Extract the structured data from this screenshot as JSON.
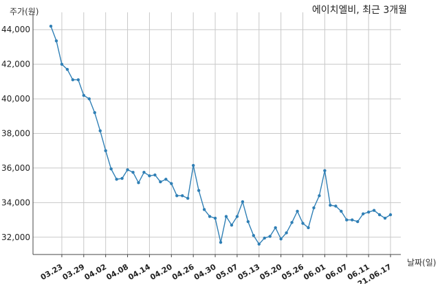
{
  "chart_data": {
    "type": "line",
    "title": "에이치엘비, 최근 3개월",
    "ylabel": "주가(원)",
    "xlabel": "날짜(일)",
    "ylim": [
      31000,
      45000
    ],
    "yticks": [
      32000,
      34000,
      36000,
      38000,
      40000,
      42000,
      44000
    ],
    "ytick_labels": [
      "32,000",
      "34,000",
      "36,000",
      "38,000",
      "40,000",
      "42,000",
      "44,000"
    ],
    "xtick_labels": [
      "03.23",
      "03.29",
      "04.02",
      "04.08",
      "04.14",
      "04.20",
      "04.26",
      "04.30",
      "05.07",
      "05.13",
      "05.20",
      "05.26",
      "06.01",
      "06.07",
      "06.11",
      "21.06.17"
    ],
    "xtick_index": [
      2,
      6,
      10,
      14,
      18,
      22,
      26,
      30,
      34,
      38,
      42,
      46,
      50,
      54,
      58,
      62
    ],
    "grid": true,
    "color": "#2f7fb5",
    "series": [
      {
        "values": [
          44200,
          43350,
          42000,
          41700,
          41100,
          41100,
          40200,
          40000,
          39200,
          38150,
          37000,
          35950,
          35350,
          35400,
          35900,
          35750,
          35150,
          35750,
          35550,
          35600,
          35200,
          35350,
          35100,
          34400,
          34400,
          34250,
          36150,
          34700,
          33600,
          33200,
          33100,
          31700,
          33200,
          32700,
          33200,
          34050,
          32900,
          32100,
          31600,
          31950,
          32050,
          32550,
          31900,
          32250,
          32850,
          33500,
          32800,
          32550,
          33700,
          34400,
          35850,
          33850,
          33800,
          33500,
          33000,
          33000,
          32900,
          33350,
          33450,
          33550,
          33300,
          33100,
          33300
        ]
      }
    ]
  }
}
